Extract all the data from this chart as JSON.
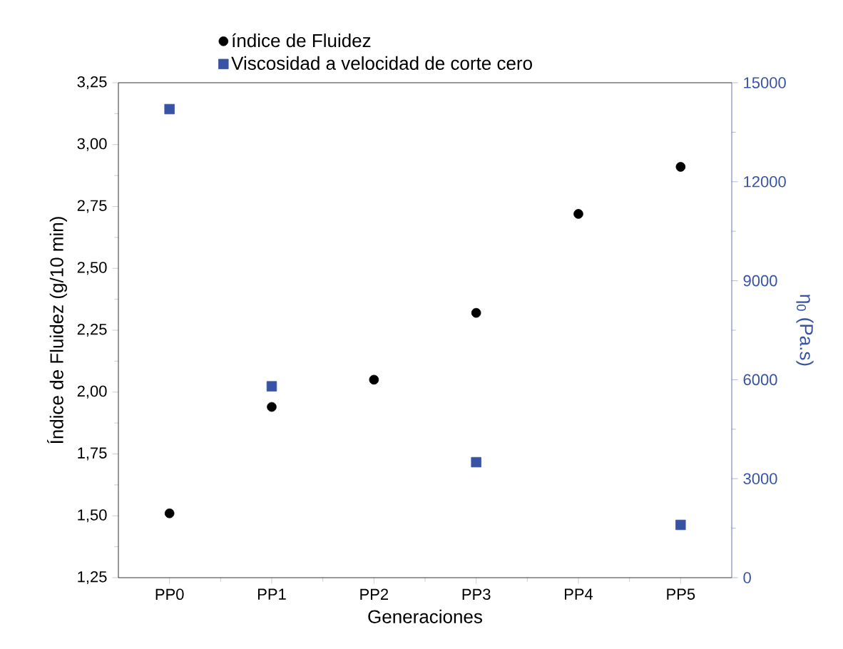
{
  "chart_data": {
    "type": "scatter",
    "categories": [
      "PP0",
      "PP1",
      "PP2",
      "PP3",
      "PP4",
      "PP5"
    ],
    "xlabel": "Generaciones",
    "ylabel": "Índice de Fluidez (g/10 min)",
    "y2label": "η$_{0}$ (Pa.s)",
    "series": [
      {
        "name": "índice de Fluidez",
        "color": "#000000",
        "marker": "circle",
        "values": [
          1.51,
          1.94,
          2.05,
          2.32,
          2.72,
          2.91
        ]
      },
      {
        "name": "Viscosidad a velocidad de corte cero",
        "color": "#3953a4",
        "marker": "square",
        "axis": "y2",
        "values": [
          14200,
          5800,
          null,
          3500,
          null,
          1600
        ]
      }
    ],
    "ylim": [
      1.25,
      3.25
    ],
    "yticks": [
      {
        "value": 1.25,
        "label": "1,25"
      },
      {
        "value": 1.5,
        "label": "1,50"
      },
      {
        "value": 1.75,
        "label": "1,75"
      },
      {
        "value": 2.0,
        "label": "2,00"
      },
      {
        "value": 2.25,
        "label": "2,25"
      },
      {
        "value": 2.5,
        "label": "2,50"
      },
      {
        "value": 2.75,
        "label": "2,75"
      },
      {
        "value": 3.0,
        "label": "3,00"
      },
      {
        "value": 3.25,
        "label": "3,25"
      }
    ],
    "y2lim": [
      0,
      15000
    ],
    "y2ticks": [
      0,
      3000,
      6000,
      9000,
      12000,
      15000
    ],
    "legend": "top",
    "grid": false
  }
}
